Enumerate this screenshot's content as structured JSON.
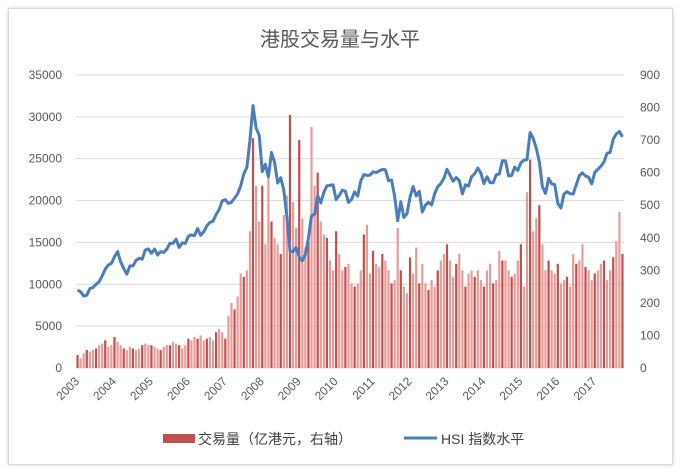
{
  "chart_data": {
    "type": "bar+line",
    "title": "港股交易量与水平",
    "x_start": "2003-01",
    "x_end": "2017-10",
    "frequency": "monthly",
    "x_tick_labels": [
      "2003",
      "2004",
      "2005",
      "2006",
      "2007",
      "2008",
      "2009",
      "2010",
      "2011",
      "2012",
      "2013",
      "2014",
      "2015",
      "2016",
      "2017"
    ],
    "left_axis": {
      "ylim": [
        0,
        35000
      ],
      "ticks": [
        "0",
        "5000",
        "10000",
        "15000",
        "20000",
        "25000",
        "30000",
        "35000"
      ],
      "tick_values": [
        0,
        5000,
        10000,
        15000,
        20000,
        25000,
        30000,
        35000
      ]
    },
    "right_axis": {
      "ylim": [
        0,
        900
      ],
      "ticks": [
        "0",
        "100",
        "200",
        "300",
        "400",
        "500",
        "600",
        "700",
        "800",
        "900"
      ],
      "tick_values": [
        0,
        100,
        200,
        300,
        400,
        500,
        600,
        700,
        800,
        900
      ]
    },
    "grid": true,
    "legend_position": "bottom",
    "series": [
      {
        "name": "交易量（亿港元，右轴）",
        "type": "bar",
        "axis": "right",
        "color": "#c0504d",
        "color_alt": "#e99a9a",
        "values": [
          40,
          30,
          45,
          55,
          50,
          55,
          60,
          70,
          75,
          85,
          65,
          70,
          95,
          80,
          70,
          60,
          55,
          65,
          60,
          55,
          60,
          70,
          75,
          70,
          70,
          65,
          60,
          55,
          65,
          70,
          70,
          80,
          75,
          70,
          60,
          70,
          90,
          85,
          95,
          90,
          100,
          85,
          90,
          95,
          85,
          110,
          120,
          110,
          90,
          160,
          200,
          180,
          220,
          290,
          280,
          300,
          420,
          706,
          560,
          450,
          560,
          380,
          600,
          450,
          400,
          380,
          350,
          470,
          530,
          777,
          510,
          430,
          700,
          460,
          370,
          400,
          740,
          560,
          600,
          450,
          410,
          400,
          330,
          300,
          420,
          350,
          300,
          310,
          320,
          260,
          250,
          260,
          300,
          410,
          440,
          290,
          360,
          320,
          310,
          350,
          330,
          300,
          260,
          270,
          430,
          300,
          250,
          230,
          340,
          290,
          370,
          260,
          320,
          260,
          240,
          270,
          250,
          300,
          330,
          350,
          380,
          330,
          280,
          320,
          350,
          300,
          250,
          290,
          300,
          280,
          300,
          270,
          250,
          300,
          320,
          260,
          270,
          360,
          330,
          330,
          300,
          280,
          290,
          330,
          380,
          250,
          540,
          640,
          420,
          460,
          500,
          380,
          300,
          330,
          300,
          290,
          320,
          260,
          270,
          280,
          250,
          350,
          320,
          330,
          380,
          310,
          300,
          270,
          290,
          300,
          320,
          330,
          270,
          300,
          340,
          390,
          480,
          350
        ]
      },
      {
        "name": "HSI 指数水平",
        "type": "line",
        "axis": "left",
        "color": "#4a7ebb",
        "values": [
          9300,
          9100,
          8600,
          8700,
          9500,
          9600,
          10000,
          10300,
          11000,
          11800,
          12300,
          12500,
          13300,
          13900,
          12700,
          11900,
          11200,
          12200,
          12200,
          12850,
          13100,
          13000,
          14100,
          14230,
          13700,
          14200,
          13500,
          13900,
          13800,
          14200,
          14880,
          14900,
          15400,
          14400,
          14940,
          14880,
          15750,
          15900,
          15800,
          16660,
          15850,
          16270,
          16970,
          17390,
          17540,
          18320,
          18960,
          19960,
          20100,
          19650,
          19800,
          20300,
          20800,
          21770,
          23180,
          23980,
          27140,
          31350,
          28640,
          27810,
          23450,
          24330,
          22850,
          25750,
          24530,
          22100,
          22730,
          21260,
          18020,
          13970,
          13890,
          14390,
          13280,
          12810,
          13580,
          15520,
          18170,
          18380,
          20570,
          19720,
          20960,
          21750,
          21820,
          21870,
          20120,
          20600,
          21240,
          21110,
          19770,
          20130,
          21030,
          20540,
          22360,
          23100,
          23010,
          23040,
          23450,
          23340,
          23530,
          23720,
          23680,
          22400,
          22440,
          20530,
          17590,
          19860,
          17990,
          18430,
          20390,
          21680,
          20560,
          21090,
          18630,
          19440,
          19800,
          19480,
          20840,
          21640,
          22030,
          22660,
          23730,
          23020,
          22300,
          22740,
          22390,
          20800,
          21880,
          21730,
          22860,
          23210,
          23880,
          23310,
          22030,
          22840,
          22150,
          22130,
          23080,
          23190,
          24760,
          24740,
          22930,
          23000,
          23990,
          23610,
          24510,
          24820,
          24900,
          28130,
          27420,
          26250,
          24640,
          21670,
          20850,
          22640,
          21990,
          21910,
          19680,
          19110,
          20780,
          21070,
          20820,
          20790,
          21890,
          22980,
          23300,
          22930,
          22790,
          22000,
          23360,
          23740,
          24110,
          24620,
          25660,
          25760,
          27320,
          27970,
          28250,
          27600
        ]
      }
    ]
  }
}
